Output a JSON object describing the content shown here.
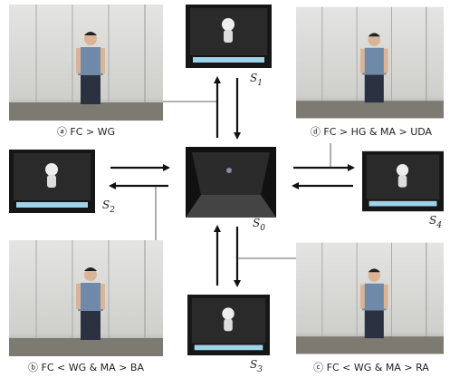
{
  "captions": [
    "ⓐ FC > WG",
    "ⓓ FC > HG & MA > UDA",
    "ⓑ FC < WG & MA > BA",
    "ⓒ FC < WG & MA > RA"
  ],
  "states": [
    {
      "symbol": "S",
      "sub": "1"
    },
    {
      "symbol": "S",
      "sub": "2"
    },
    {
      "symbol": "S",
      "sub": "0"
    },
    {
      "symbol": "S",
      "sub": "4"
    },
    {
      "symbol": "S",
      "sub": "3"
    }
  ]
}
